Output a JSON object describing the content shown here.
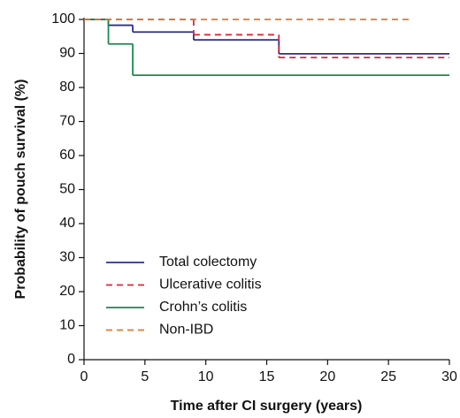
{
  "chart_data": {
    "type": "step",
    "xlabel": "Time after CI surgery (years)",
    "ylabel": "Probability of pouch survival (%)",
    "xlim": [
      0,
      30
    ],
    "xticks": [
      0,
      5,
      10,
      15,
      20,
      25,
      30
    ],
    "ylim": [
      0,
      100
    ],
    "yticks": [
      0,
      10,
      20,
      30,
      40,
      50,
      60,
      70,
      80,
      90,
      100
    ],
    "legend": "lower left",
    "series": [
      {
        "name": "Total colectomy",
        "color": "#2b2f8f",
        "dashed": false,
        "x": [
          0,
          2,
          4,
          9,
          16,
          30
        ],
        "values": [
          100,
          98.3,
          96.3,
          94,
          89.9,
          89.9
        ]
      },
      {
        "name": "Ulcerative colitis",
        "color": "#d62b3a",
        "dashed": true,
        "x": [
          0,
          9,
          16,
          30
        ],
        "values": [
          100,
          95.5,
          88.8,
          88.8
        ]
      },
      {
        "name": "Crohn’s colitis",
        "color": "#1a8a4a",
        "dashed": false,
        "x": [
          0,
          2,
          4,
          30
        ],
        "values": [
          100,
          92.8,
          83.6,
          83.6
        ]
      },
      {
        "name": "Non-IBD",
        "color": "#e8762a",
        "dashed": true,
        "x": [
          0,
          27
        ],
        "values": [
          100,
          100
        ]
      }
    ]
  }
}
